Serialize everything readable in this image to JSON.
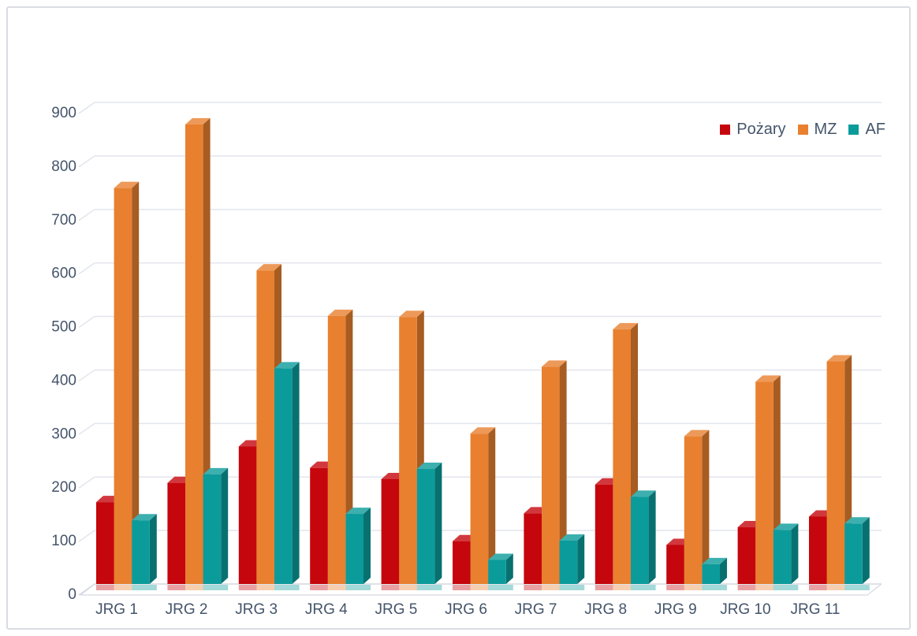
{
  "chart_data": {
    "type": "bar",
    "variant": "3d-clustered-column",
    "title": "",
    "xlabel": "",
    "ylabel": "",
    "categories": [
      "JRG 1",
      "JRG 2",
      "JRG 3",
      "JRG 4",
      "JRG 5",
      "JRG 6",
      "JRG 7",
      "JRG 8",
      "JRG 9",
      "JRG 10",
      "JRG 11"
    ],
    "series": [
      {
        "name": "Pożary",
        "color": "#c5060d",
        "values": [
          153,
          189,
          257,
          217,
          196,
          80,
          132,
          186,
          73,
          106,
          126
        ]
      },
      {
        "name": "MZ",
        "color": "#e8802f",
        "values": [
          740,
          859,
          586,
          501,
          499,
          281,
          406,
          476,
          276,
          378,
          416
        ]
      },
      {
        "name": "AF",
        "color": "#0c9b9b",
        "values": [
          119,
          205,
          403,
          131,
          215,
          45,
          81,
          163,
          37,
          101,
          113
        ]
      }
    ],
    "ylim": [
      0,
      900
    ],
    "yticks": [
      0,
      100,
      200,
      300,
      400,
      500,
      600,
      700,
      800,
      900
    ],
    "grid": true,
    "legend_position": "top-right",
    "axis_text_color": "#44546a",
    "grid_color": "#e2e5ed",
    "axis_line_color": "#d5d9e2"
  }
}
